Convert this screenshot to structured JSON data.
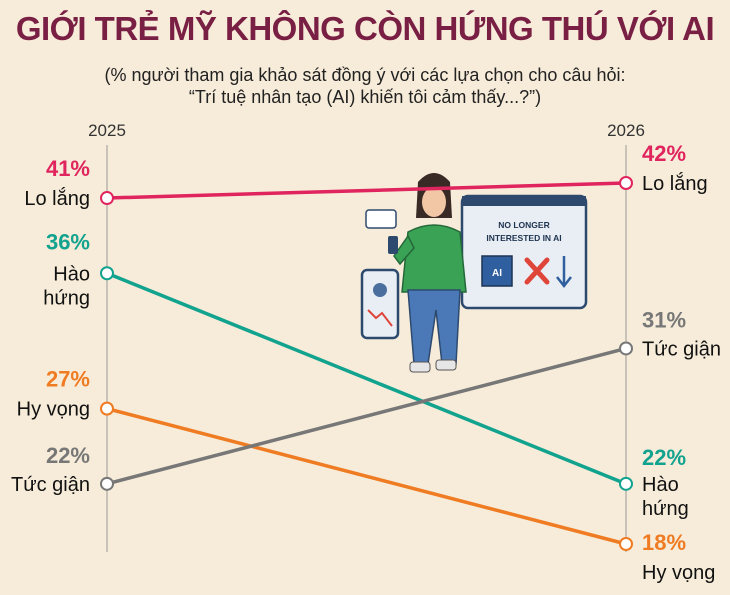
{
  "title": "GIỚI TRẺ MỸ KHÔNG CÒN HỨNG THÚ VỚI AI",
  "subtitle_line1": "(% người tham gia khảo sát đồng ý với các lựa chọn cho câu hỏi:",
  "subtitle_line2": "“Trí tuệ nhân tạo (AI) khiến tôi cảm thấy...?”)",
  "illustration": {
    "screen_text_line1": "NO LONGER",
    "screen_text_line2": "INTERESTED IN AI",
    "chip_text": "AI"
  },
  "chart_data": {
    "type": "line",
    "x": [
      "2025",
      "2026"
    ],
    "series": [
      {
        "name": "Lo lắng",
        "values": [
          41,
          42
        ],
        "color": "#e0245e",
        "left_label": [
          "Lo lắng"
        ],
        "right_label": [
          "Lo lắng"
        ],
        "left_value_text": "41%",
        "right_value_text": "42%"
      },
      {
        "name": "Hào hứng",
        "values": [
          36,
          22
        ],
        "color": "#12a38f",
        "left_label": [
          "Hào",
          "hứng"
        ],
        "right_label": [
          "Hào",
          "hứng"
        ],
        "left_value_text": "36%",
        "right_value_text": "22%"
      },
      {
        "name": "Hy vọng",
        "values": [
          27,
          18
        ],
        "color": "#ef7b22",
        "left_label": [
          "Hy vọng"
        ],
        "right_label": [
          "Hy vọng"
        ],
        "left_value_text": "27%",
        "right_value_text": "18%"
      },
      {
        "name": "Tức giận",
        "values": [
          22,
          31
        ],
        "color": "#777777",
        "left_label": [
          "Tức giận"
        ],
        "right_label": [
          "Tức giận"
        ],
        "left_value_text": "22%",
        "right_value_text": "31%"
      }
    ]
  }
}
